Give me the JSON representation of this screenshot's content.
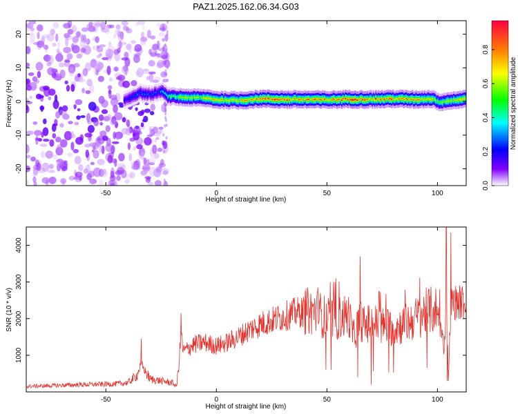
{
  "title": "PAZ1.2025.162.06.34.G03",
  "chart_data": [
    {
      "type": "heatmap",
      "xlabel": "Height of straight line (km)",
      "ylabel": "Frequency (Hz)",
      "xlim": [
        -86,
        113
      ],
      "ylim": [
        -25,
        24
      ],
      "xticks": [
        -50,
        0,
        50,
        100
      ],
      "yticks": [
        -20,
        -10,
        0,
        10,
        20
      ],
      "colorbar": {
        "label": "Normalized spectral amplitude",
        "range": [
          0,
          0.97
        ],
        "ticks": [
          0.0,
          0.2,
          0.4,
          0.6,
          0.8
        ],
        "tick_labels": [
          "0.0",
          "0.2",
          "0.4",
          "0.6",
          "0.8"
        ],
        "colormap": [
          "#ffffff",
          "#8000ff",
          "#0000ff",
          "#00ffff",
          "#00ff00",
          "#ffff00",
          "#ff8000",
          "#ff0040"
        ]
      },
      "signal_track": {
        "description_values": "center frequency vs height",
        "x": [
          -42,
          -35,
          -30,
          -25,
          -22,
          -15,
          -5,
          0,
          10,
          20,
          30,
          40,
          50,
          60,
          70,
          80,
          90,
          98,
          100,
          105,
          113
        ],
        "center_hz": [
          0.3,
          2.5,
          2.0,
          3.0,
          1.5,
          1.2,
          1.0,
          0.5,
          0.3,
          0.8,
          0.6,
          0.6,
          0.5,
          0.7,
          0.6,
          0.8,
          0.6,
          0.8,
          -0.2,
          0.2,
          0.8
        ],
        "peak_amplitude": [
          0.2,
          0.3,
          0.25,
          0.3,
          0.5,
          0.6,
          0.7,
          0.75,
          0.8,
          0.85,
          0.9,
          0.85,
          0.85,
          0.9,
          0.9,
          0.85,
          0.8,
          0.7,
          0.6,
          0.7,
          0.7
        ]
      },
      "noise_region": {
        "x_range": [
          -86,
          -22
        ],
        "freq_range": [
          -25,
          24
        ],
        "typical_amplitude": 0.1
      }
    },
    {
      "type": "line",
      "xlabel": "Height of straight line (km)",
      "ylabel": "SNR (10 * v/v)",
      "xlim": [
        -86,
        113
      ],
      "ylim": [
        0,
        4500
      ],
      "xticks": [
        -50,
        0,
        50,
        100
      ],
      "yticks": [
        1000,
        2000,
        3000,
        4000
      ],
      "series": [
        {
          "color": "#e8302a",
          "x": [
            -86,
            -70,
            -60,
            -50,
            -45,
            -40,
            -36,
            -34,
            -30,
            -25,
            -20,
            -18,
            -17,
            -16,
            -15,
            -10,
            -5,
            0,
            5,
            10,
            15,
            20,
            25,
            30,
            35,
            40,
            45,
            50,
            55,
            60,
            62,
            65,
            67,
            70,
            75,
            80,
            85,
            90,
            95,
            100,
            103,
            104,
            105,
            106,
            108,
            113
          ],
          "y": [
            150,
            180,
            200,
            210,
            220,
            250,
            450,
            750,
            350,
            300,
            250,
            150,
            700,
            1600,
            1100,
            1300,
            1350,
            1250,
            1350,
            1500,
            1700,
            1850,
            1950,
            2050,
            2150,
            2200,
            2200,
            2000,
            2000,
            2100,
            1500,
            2000,
            1800,
            1900,
            1800,
            1750,
            1850,
            2000,
            2200,
            2250,
            1200,
            2400,
            300,
            2400,
            2450,
            2450
          ]
        }
      ],
      "spikes": [
        {
          "x": -34,
          "y": 1450
        },
        {
          "x": -16,
          "y": 2150
        },
        {
          "x": 46,
          "y": 2850
        },
        {
          "x": 54,
          "y": 3100
        },
        {
          "x": 65,
          "y": 3700
        },
        {
          "x": 64,
          "y": 400
        },
        {
          "x": 70,
          "y": 200
        },
        {
          "x": 101,
          "y": 2800
        },
        {
          "x": 104,
          "y": 4500
        },
        {
          "x": 106,
          "y": 4350
        },
        {
          "x": 104.5,
          "y": 300
        }
      ]
    }
  ]
}
